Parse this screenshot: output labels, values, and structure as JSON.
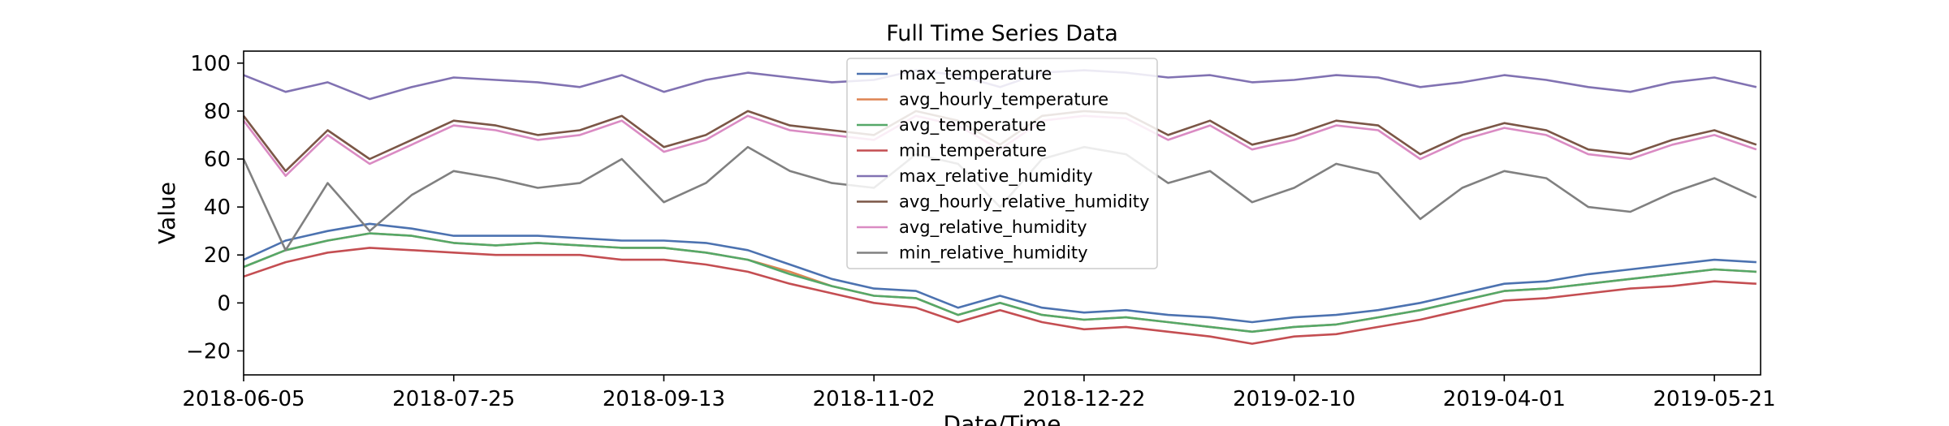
{
  "chart_data": {
    "type": "line",
    "title": "Full Time Series Data",
    "xlabel": "Date/Time",
    "ylabel": "Value",
    "xlim": [
      "2018-06-05",
      "2019-06-01"
    ],
    "ylim": [
      -30,
      105
    ],
    "x_ticks": [
      "2018-06-05",
      "2018-07-25",
      "2018-09-13",
      "2018-11-02",
      "2018-12-22",
      "2019-02-10",
      "2019-04-01",
      "2019-05-21"
    ],
    "y_ticks": [
      -20,
      0,
      20,
      40,
      60,
      80,
      100
    ],
    "grid": false,
    "legend_position": "top-center",
    "x": [
      "2018-06-05",
      "2018-06-15",
      "2018-06-25",
      "2018-07-05",
      "2018-07-15",
      "2018-07-25",
      "2018-08-04",
      "2018-08-14",
      "2018-08-24",
      "2018-09-03",
      "2018-09-13",
      "2018-09-23",
      "2018-10-03",
      "2018-10-13",
      "2018-10-23",
      "2018-11-02",
      "2018-11-12",
      "2018-11-22",
      "2018-12-02",
      "2018-12-12",
      "2018-12-22",
      "2019-01-01",
      "2019-01-11",
      "2019-01-21",
      "2019-01-31",
      "2019-02-10",
      "2019-02-20",
      "2019-03-02",
      "2019-03-12",
      "2019-03-22",
      "2019-04-01",
      "2019-04-11",
      "2019-04-21",
      "2019-05-01",
      "2019-05-11",
      "2019-05-21",
      "2019-05-31"
    ],
    "series": [
      {
        "name": "max_temperature",
        "color": "#4c72b0",
        "values": [
          18,
          26,
          30,
          33,
          31,
          28,
          28,
          28,
          27,
          26,
          26,
          25,
          22,
          16,
          10,
          6,
          5,
          -2,
          3,
          -2,
          -4,
          -3,
          -5,
          -6,
          -8,
          -6,
          -5,
          -3,
          0,
          4,
          8,
          9,
          12,
          14,
          16,
          18,
          17
        ]
      },
      {
        "name": "avg_hourly_temperature",
        "color": "#dd8452",
        "values": [
          15,
          22,
          26,
          29,
          28,
          25,
          24,
          25,
          24,
          23,
          23,
          21,
          18,
          13,
          7,
          3,
          2,
          -5,
          0,
          -5,
          -7,
          -6,
          -8,
          -10,
          -12,
          -10,
          -9,
          -6,
          -3,
          1,
          5,
          6,
          8,
          10,
          12,
          14,
          13
        ]
      },
      {
        "name": "avg_temperature",
        "color": "#55a868",
        "values": [
          15,
          22,
          26,
          29,
          28,
          25,
          24,
          25,
          24,
          23,
          23,
          21,
          18,
          12,
          7,
          3,
          2,
          -5,
          0,
          -5,
          -7,
          -6,
          -8,
          -10,
          -12,
          -10,
          -9,
          -6,
          -3,
          1,
          5,
          6,
          8,
          10,
          12,
          14,
          13
        ]
      },
      {
        "name": "min_temperature",
        "color": "#c44e52",
        "values": [
          11,
          17,
          21,
          23,
          22,
          21,
          20,
          20,
          20,
          18,
          18,
          16,
          13,
          8,
          4,
          0,
          -2,
          -8,
          -3,
          -8,
          -11,
          -10,
          -12,
          -14,
          -17,
          -14,
          -13,
          -10,
          -7,
          -3,
          1,
          2,
          4,
          6,
          7,
          9,
          8
        ]
      },
      {
        "name": "max_relative_humidity",
        "color": "#8172b2",
        "values": [
          95,
          88,
          92,
          85,
          90,
          94,
          93,
          92,
          90,
          95,
          88,
          93,
          96,
          94,
          92,
          93,
          97,
          95,
          90,
          96,
          97,
          96,
          94,
          95,
          92,
          93,
          95,
          94,
          90,
          92,
          95,
          93,
          90,
          88,
          92,
          94,
          90
        ]
      },
      {
        "name": "avg_hourly_relative_humidity",
        "color": "#7b5646",
        "values": [
          78,
          55,
          72,
          60,
          68,
          76,
          74,
          70,
          72,
          78,
          65,
          70,
          80,
          74,
          72,
          70,
          80,
          76,
          66,
          78,
          80,
          79,
          70,
          76,
          66,
          70,
          76,
          74,
          62,
          70,
          75,
          72,
          64,
          62,
          68,
          72,
          66
        ]
      },
      {
        "name": "avg_relative_humidity",
        "color": "#da8bc3",
        "values": [
          76,
          53,
          70,
          58,
          66,
          74,
          72,
          68,
          70,
          76,
          63,
          68,
          78,
          72,
          70,
          68,
          78,
          74,
          64,
          76,
          78,
          77,
          68,
          74,
          64,
          68,
          74,
          72,
          60,
          68,
          73,
          70,
          62,
          60,
          66,
          70,
          64
        ]
      },
      {
        "name": "min_relative_humidity",
        "color": "#808080",
        "values": [
          60,
          22,
          50,
          30,
          45,
          55,
          52,
          48,
          50,
          60,
          42,
          50,
          65,
          55,
          50,
          48,
          62,
          58,
          40,
          60,
          65,
          62,
          50,
          55,
          42,
          48,
          58,
          54,
          35,
          48,
          55,
          52,
          40,
          38,
          46,
          52,
          44
        ]
      }
    ]
  }
}
